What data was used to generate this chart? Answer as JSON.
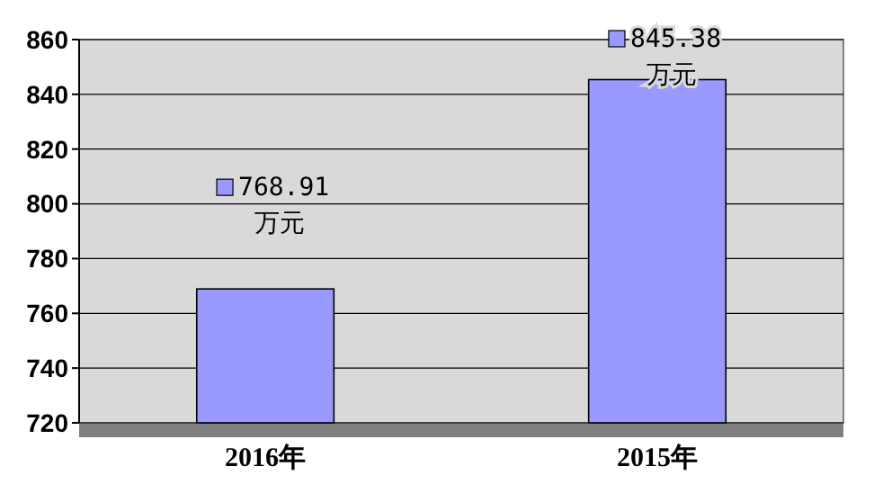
{
  "chart_data": {
    "type": "bar",
    "categories": [
      "2016年",
      "2015年"
    ],
    "series": [
      {
        "color": "#9999ff",
        "values": [
          768.91,
          845.38
        ]
      }
    ],
    "value_labels": [
      "768.91 万元",
      "845.38 万元"
    ],
    "ylim": [
      720,
      860
    ],
    "yticks": [
      720,
      740,
      760,
      780,
      800,
      820,
      840,
      860
    ],
    "grid": "y"
  }
}
